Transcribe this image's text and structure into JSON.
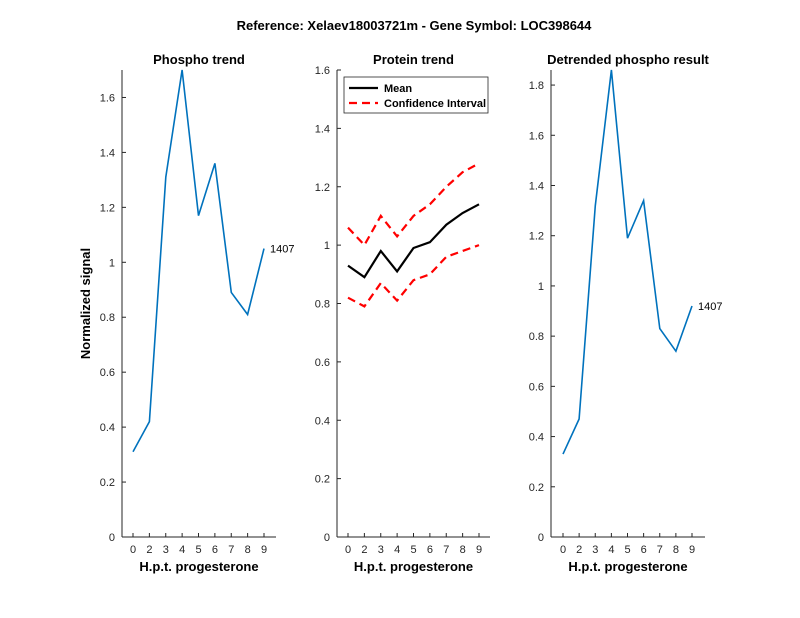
{
  "figure": {
    "suptitle": "Reference:  Xelaev18003721m - Gene Symbol:  LOC398644"
  },
  "colors": {
    "phospho_line": "#0072BD",
    "mean_line": "#000000",
    "ci_line": "#FF0000",
    "axis": "#262626"
  },
  "chart_data": [
    {
      "type": "line",
      "title": "Phospho trend",
      "xlabel": "H.p.t. progesterone",
      "ylabel": "Normalized signal",
      "categories": [
        "0",
        "2",
        "3",
        "4",
        "5",
        "6",
        "7",
        "8",
        "9"
      ],
      "ylim": [
        0,
        1.7
      ],
      "yticks": [
        0,
        0.2,
        0.4,
        0.6,
        0.8,
        1,
        1.2,
        1.4,
        1.6
      ],
      "series": [
        {
          "name": "phospho",
          "values": [
            0.31,
            0.42,
            1.31,
            1.7,
            1.17,
            1.36,
            0.89,
            0.81,
            1.05
          ]
        }
      ],
      "end_label": "1407"
    },
    {
      "type": "line",
      "title": "Protein trend",
      "xlabel": "H.p.t. progesterone",
      "ylabel": "",
      "categories": [
        "0",
        "2",
        "3",
        "4",
        "5",
        "6",
        "7",
        "8",
        "9"
      ],
      "ylim": [
        0,
        1.6
      ],
      "yticks": [
        0,
        0.2,
        0.4,
        0.6,
        0.8,
        1,
        1.2,
        1.4,
        1.6
      ],
      "legend": {
        "position": "top-left",
        "entries": [
          "Mean",
          "Confidence Interval"
        ]
      },
      "series": [
        {
          "name": "Mean",
          "style": "solid",
          "values": [
            0.93,
            0.89,
            0.98,
            0.91,
            0.99,
            1.01,
            1.07,
            1.11,
            1.14
          ]
        },
        {
          "name": "Confidence Interval",
          "style": "dashed",
          "values": [
            1.06,
            1.0,
            1.1,
            1.03,
            1.1,
            1.14,
            1.2,
            1.25,
            1.28
          ]
        },
        {
          "name": "Confidence Interval",
          "style": "dashed",
          "values": [
            0.82,
            0.79,
            0.87,
            0.81,
            0.88,
            0.9,
            0.96,
            0.98,
            1.0
          ]
        }
      ]
    },
    {
      "type": "line",
      "title": "Detrended phospho result",
      "xlabel": "H.p.t. progesterone",
      "ylabel": "",
      "categories": [
        "0",
        "2",
        "3",
        "4",
        "5",
        "6",
        "7",
        "8",
        "9"
      ],
      "ylim": [
        0,
        1.86
      ],
      "yticks": [
        0,
        0.2,
        0.4,
        0.6,
        0.8,
        1,
        1.2,
        1.4,
        1.6,
        1.8
      ],
      "series": [
        {
          "name": "detrended",
          "values": [
            0.33,
            0.47,
            1.32,
            1.86,
            1.19,
            1.34,
            0.83,
            0.74,
            0.92
          ]
        }
      ],
      "end_label": "1407"
    }
  ]
}
